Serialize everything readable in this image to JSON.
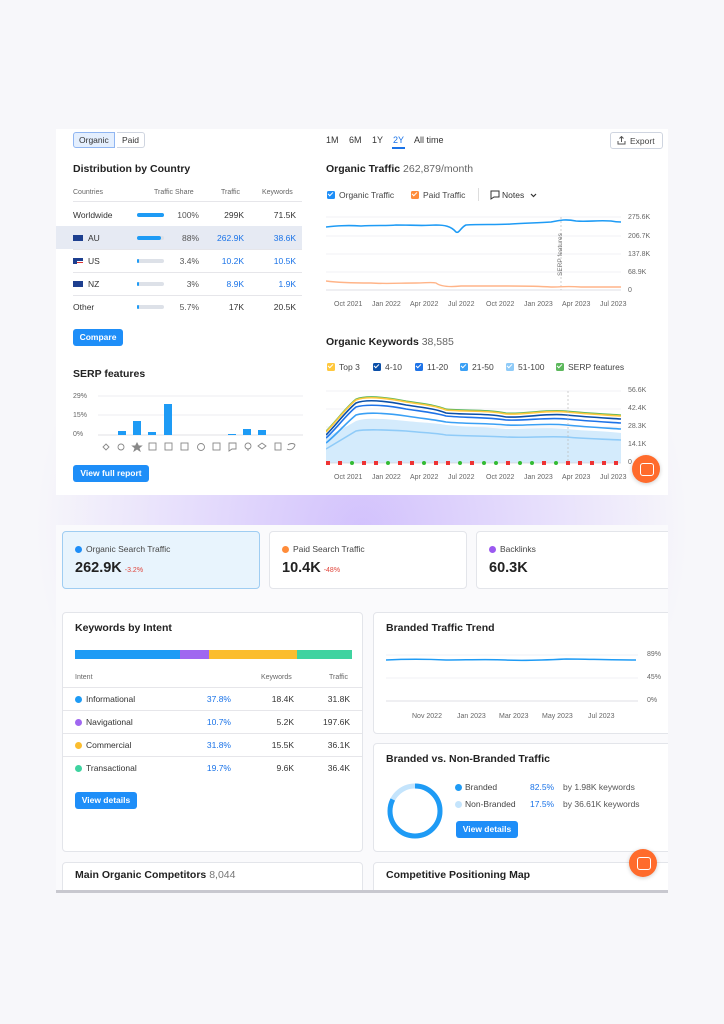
{
  "top": {
    "tabs": [
      {
        "label": "Organic",
        "active": true
      },
      {
        "label": "Paid",
        "active": false
      }
    ],
    "periods": [
      {
        "label": "1M"
      },
      {
        "label": "6M"
      },
      {
        "label": "1Y"
      },
      {
        "label": "2Y",
        "active": true
      },
      {
        "label": "All time"
      }
    ],
    "export_label": "Export",
    "distribution": {
      "title": "Distribution by Country",
      "headers": [
        "Countries",
        "Traffic Share",
        "Traffic",
        "Keywords"
      ],
      "rows": [
        {
          "country": "Worldwide",
          "share": "100%",
          "share_pct": 100,
          "traffic": "299K",
          "keywords": "71.5K",
          "flag": ""
        },
        {
          "country": "AU",
          "share": "88%",
          "share_pct": 88,
          "traffic": "262.9K",
          "keywords": "38.6K",
          "flag": "au",
          "highlight": true
        },
        {
          "country": "US",
          "share": "3.4%",
          "share_pct": 3.4,
          "traffic": "10.2K",
          "keywords": "10.5K",
          "flag": "us"
        },
        {
          "country": "NZ",
          "share": "3%",
          "share_pct": 3,
          "traffic": "8.9K",
          "keywords": "1.9K",
          "flag": "nz"
        },
        {
          "country": "Other",
          "share": "5.7%",
          "share_pct": 5.7,
          "traffic": "17K",
          "keywords": "20.5K",
          "flag": ""
        }
      ],
      "compare_label": "Compare"
    },
    "serp": {
      "title": "SERP features",
      "y_ticks": [
        "29%",
        "15%",
        "0%"
      ],
      "view_label": "View full report"
    },
    "organic_traffic": {
      "title": "Organic Traffic",
      "value": "262,879/month",
      "legend": [
        {
          "label": "Organic Traffic",
          "color": "#1e8ef8"
        },
        {
          "label": "Paid Traffic",
          "color": "#ff8c3a"
        }
      ],
      "notes_label": "Notes",
      "y_ticks": [
        "275.6K",
        "206.7K",
        "137.8K",
        "68.9K",
        "0"
      ],
      "x_ticks": [
        "Oct 2021",
        "Jan 2022",
        "Apr 2022",
        "Jul 2022",
        "Oct 2022",
        "Jan 2023",
        "Apr 2023",
        "Jul 2023"
      ],
      "annotation": "SERP features"
    },
    "organic_keywords": {
      "title": "Organic Keywords",
      "value": "38,585",
      "legend": [
        {
          "label": "Top 3",
          "color": "#ffc83d"
        },
        {
          "label": "4-10",
          "color": "#0b4fa8"
        },
        {
          "label": "11-20",
          "color": "#1e73e8"
        },
        {
          "label": "21-50",
          "color": "#3aa0f5"
        },
        {
          "label": "51-100",
          "color": "#8fcbf8"
        },
        {
          "label": "SERP features",
          "color": "#5cb85c"
        }
      ],
      "y_ticks": [
        "56.6K",
        "42.4K",
        "28.3K",
        "14.1K",
        "0"
      ],
      "x_ticks": [
        "Oct 2021",
        "Jan 2022",
        "Apr 2022",
        "Jul 2022",
        "Oct 2022",
        "Jan 2023",
        "Apr 2023",
        "Jul 2023"
      ]
    }
  },
  "bottom": {
    "metrics": [
      {
        "label": "Organic Search Traffic",
        "value": "262.9K",
        "delta": "-3.2%",
        "color": "#1e8ef8",
        "active": true
      },
      {
        "label": "Paid Search Traffic",
        "value": "10.4K",
        "delta": "-48%",
        "color": "#ff8c3a"
      },
      {
        "label": "Backlinks",
        "value": "60.3K",
        "delta": "",
        "color": "#9b59f0"
      }
    ],
    "intent": {
      "title": "Keywords by Intent",
      "headers": [
        "Intent",
        "Keywords",
        "Traffic"
      ],
      "rows": [
        {
          "name": "Informational",
          "pct": "37.8%",
          "pct_num": 37.8,
          "keywords": "18.4K",
          "traffic": "31.8K",
          "color": "#1e9bf5"
        },
        {
          "name": "Navigational",
          "pct": "10.7%",
          "pct_num": 10.7,
          "keywords": "5.2K",
          "traffic": "197.6K",
          "color": "#a067f0"
        },
        {
          "name": "Commercial",
          "pct": "31.8%",
          "pct_num": 31.8,
          "keywords": "15.5K",
          "traffic": "36.1K",
          "color": "#fbbd2e"
        },
        {
          "name": "Transactional",
          "pct": "19.7%",
          "pct_num": 19.7,
          "keywords": "9.6K",
          "traffic": "36.4K",
          "color": "#3fd3a0"
        }
      ],
      "details_label": "View details"
    },
    "branded_trend": {
      "title": "Branded Traffic Trend",
      "y_ticks": [
        "89%",
        "45%",
        "0%"
      ],
      "x_ticks": [
        "Nov 2022",
        "Jan 2023",
        "Mar 2023",
        "May 2023",
        "Jul 2023"
      ]
    },
    "branded_vs": {
      "title": "Branded vs. Non-Branded Traffic",
      "rows": [
        {
          "label": "Branded",
          "pct": "82.5%",
          "pct_num": 82.5,
          "note": "by 1.98K keywords",
          "color": "#1e9bf5"
        },
        {
          "label": "Non-Branded",
          "pct": "17.5%",
          "pct_num": 17.5,
          "note": "by 36.61K keywords",
          "color": "#c4e4fc"
        }
      ],
      "details_label": "View details"
    },
    "competitors": {
      "title": "Main Organic Competitors",
      "count": "8,044"
    },
    "positioning": {
      "title": "Competitive Positioning Map"
    }
  }
}
